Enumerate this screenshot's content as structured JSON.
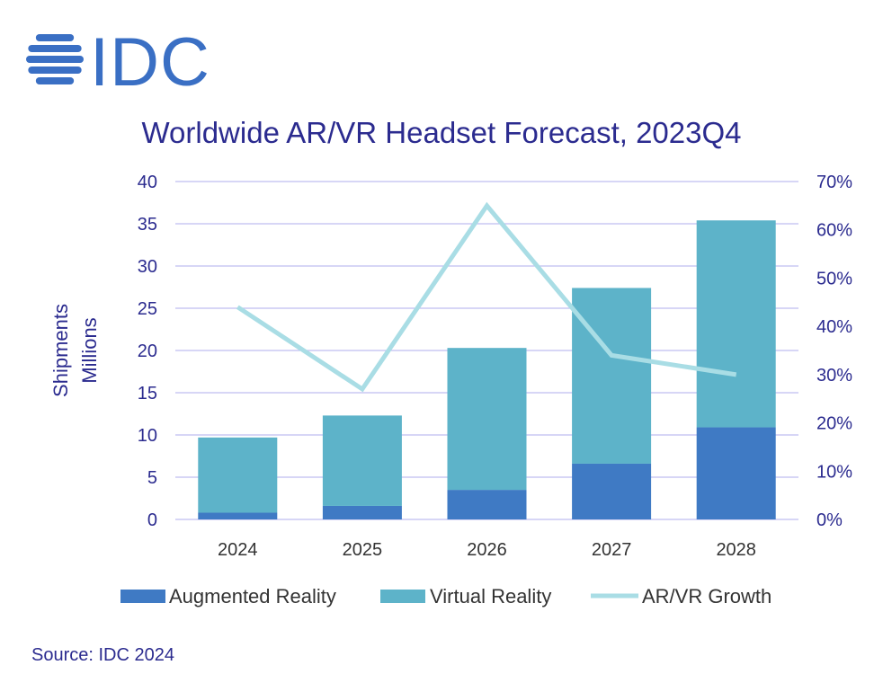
{
  "logo": {
    "text": "IDC",
    "color": "#3a6fc4"
  },
  "colors": {
    "title": "#2b2b8f",
    "ar": "#3f7ac4",
    "vr": "#5db3c9",
    "growth": "#a9dde5",
    "grid": "#bfbdf0",
    "source": "#2b2b8f"
  },
  "source": "Source: IDC 2024",
  "chart_data": {
    "type": "bar",
    "stacked": true,
    "title": "Worldwide AR/VR Headset Forecast, 2023Q4",
    "ylabel": "Shipments\nMillions",
    "y2label": "",
    "categories": [
      "2024",
      "2025",
      "2026",
      "2027",
      "2028"
    ],
    "ylim": [
      0,
      40
    ],
    "y_ticks": [
      0,
      5,
      10,
      15,
      20,
      25,
      30,
      35,
      40
    ],
    "y2lim": [
      0,
      70
    ],
    "y2_ticks": [
      "0%",
      "10%",
      "20%",
      "30%",
      "40%",
      "50%",
      "60%",
      "70%"
    ],
    "series": [
      {
        "name": "Augmented Reality",
        "type": "bar",
        "values": [
          0.8,
          1.6,
          3.5,
          6.6,
          10.9
        ]
      },
      {
        "name": "Virtual Reality",
        "type": "bar",
        "values": [
          8.9,
          10.7,
          16.8,
          20.8,
          24.5
        ]
      },
      {
        "name": "AR/VR Growth",
        "type": "line",
        "axis": "right",
        "values": [
          44,
          27,
          65,
          34,
          30
        ]
      }
    ],
    "grid": true,
    "legend": "bottom"
  }
}
